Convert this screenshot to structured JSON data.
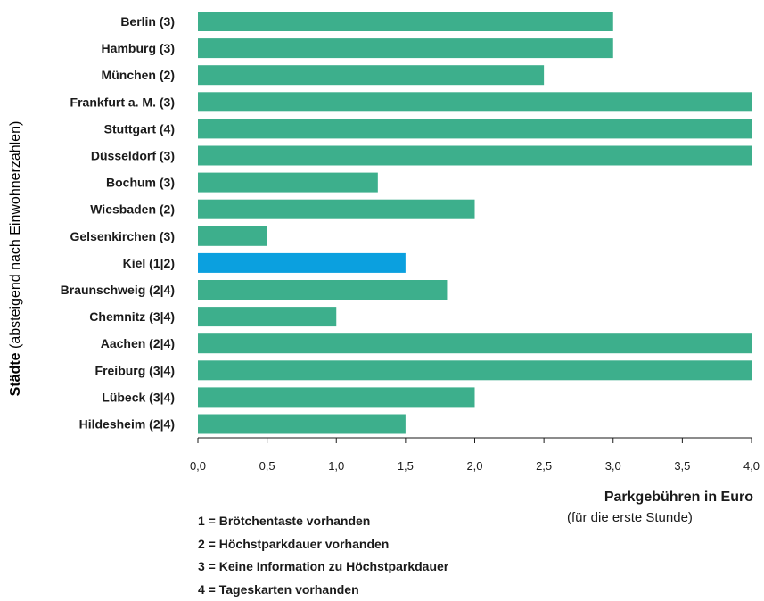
{
  "chart_data": {
    "type": "bar",
    "orientation": "horizontal",
    "categories": [
      "Berlin (3)",
      "Hamburg (3)",
      "München (2)",
      "Frankfurt a. M. (3)",
      "Stuttgart (4)",
      "Düsseldorf (3)",
      "Bochum (3)",
      "Wiesbaden (2)",
      "Gelsenkirchen (3)",
      "Kiel (1|2)",
      "Braunschweig (2|4)",
      "Chemnitz (3|4)",
      "Aachen (2|4)",
      "Freiburg (3|4)",
      "Lübeck (3|4)",
      "Hildesheim (2|4)"
    ],
    "values": [
      3.0,
      3.0,
      2.5,
      4.0,
      4.0,
      4.0,
      1.3,
      2.0,
      0.5,
      1.5,
      1.8,
      1.0,
      4.0,
      4.0,
      2.0,
      1.5
    ],
    "highlight_index": 9,
    "colors": {
      "default": "#3daf8c",
      "highlight": "#0ba0df"
    },
    "xlim": [
      0,
      4.0
    ],
    "xticks": [
      "0,0",
      "0,5",
      "1,0",
      "1,5",
      "2,0",
      "2,5",
      "3,0",
      "3,5",
      "4,0"
    ],
    "ylabel_bold": "Städte",
    "ylabel_rest": " (absteigend nach Einwohnerzahlen)",
    "xlabel": "Parkgebühren in Euro",
    "xlabel_sub": "(für die erste Stunde)",
    "grid": false
  },
  "legend": [
    "1 = Brötchentaste vorhanden",
    "2 = Höchstparkdauer vorhanden",
    "3 = Keine Information zu Höchstparkdauer",
    "4 = Tageskarten vorhanden"
  ]
}
